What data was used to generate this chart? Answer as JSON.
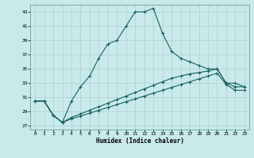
{
  "title": "",
  "xlabel": "Humidex (Indice chaleur)",
  "background_color": "#c8eaea",
  "grid_color": "#b0d0d0",
  "line_color": "#1a6060",
  "xlim": [
    -0.5,
    23.5
  ],
  "ylim": [
    26.5,
    44.0
  ],
  "yticks": [
    27,
    29,
    31,
    33,
    35,
    37,
    39,
    41,
    43
  ],
  "xticks": [
    0,
    1,
    2,
    3,
    4,
    5,
    6,
    7,
    8,
    9,
    10,
    11,
    12,
    13,
    14,
    15,
    16,
    17,
    18,
    19,
    20,
    21,
    22,
    23
  ],
  "line1_x": [
    0,
    1,
    2,
    3,
    4,
    5,
    6,
    7,
    8,
    9,
    10,
    11,
    12,
    13,
    14,
    15,
    16,
    17,
    18,
    19,
    20,
    21,
    22,
    23
  ],
  "line1_y": [
    30.5,
    30.5,
    28.5,
    27.5,
    30.5,
    32.5,
    34.0,
    36.5,
    38.5,
    39.0,
    41.0,
    43.0,
    43.0,
    43.5,
    40.0,
    37.5,
    36.5,
    36.0,
    35.5,
    35.0,
    35.0,
    33.0,
    33.0,
    32.5
  ],
  "line2_x": [
    0,
    1,
    2,
    3,
    4,
    5,
    6,
    7,
    8,
    9,
    10,
    11,
    12,
    13,
    14,
    15,
    16,
    17,
    18,
    19,
    20,
    21,
    22,
    23
  ],
  "line2_y": [
    30.5,
    30.5,
    28.5,
    27.5,
    28.2,
    28.7,
    29.2,
    29.7,
    30.2,
    30.7,
    31.2,
    31.7,
    32.2,
    32.7,
    33.2,
    33.7,
    34.0,
    34.3,
    34.5,
    34.7,
    35.0,
    33.0,
    32.5,
    32.5
  ],
  "line3_x": [
    0,
    1,
    2,
    3,
    4,
    5,
    6,
    7,
    8,
    9,
    10,
    11,
    12,
    13,
    14,
    15,
    16,
    17,
    18,
    19,
    20,
    21,
    22,
    23
  ],
  "line3_y": [
    30.5,
    30.5,
    28.5,
    27.5,
    28.0,
    28.4,
    28.8,
    29.2,
    29.6,
    30.0,
    30.4,
    30.8,
    31.2,
    31.6,
    32.0,
    32.4,
    32.8,
    33.2,
    33.6,
    34.0,
    34.4,
    32.8,
    32.0,
    32.0
  ]
}
